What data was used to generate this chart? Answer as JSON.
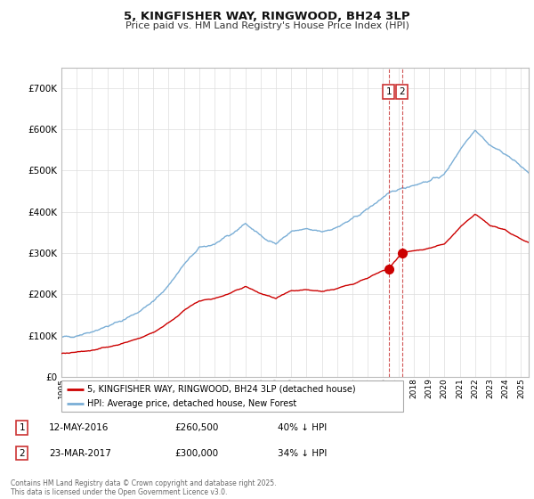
{
  "title": "5, KINGFISHER WAY, RINGWOOD, BH24 3LP",
  "subtitle": "Price paid vs. HM Land Registry's House Price Index (HPI)",
  "legend_line1": "5, KINGFISHER WAY, RINGWOOD, BH24 3LP (detached house)",
  "legend_line2": "HPI: Average price, detached house, New Forest",
  "annotation1_label": "1",
  "annotation1_date": "12-MAY-2016",
  "annotation1_price": "£260,500",
  "annotation1_hpi": "40% ↓ HPI",
  "annotation2_label": "2",
  "annotation2_date": "23-MAR-2017",
  "annotation2_price": "£300,000",
  "annotation2_hpi": "34% ↓ HPI",
  "footnote": "Contains HM Land Registry data © Crown copyright and database right 2025.\nThis data is licensed under the Open Government Licence v3.0.",
  "sale1_year": 2016.36,
  "sale1_price": 260500,
  "sale2_year": 2017.23,
  "sale2_price": 300000,
  "line_color_property": "#cc0000",
  "line_color_hpi": "#7aaed6",
  "dashed_line_color": "#cc4444",
  "ylim_min": 0,
  "ylim_max": 750000,
  "grid_color": "#dddddd",
  "background_color": "#ffffff",
  "yticks": [
    0,
    100000,
    200000,
    300000,
    400000,
    500000,
    600000,
    700000
  ]
}
